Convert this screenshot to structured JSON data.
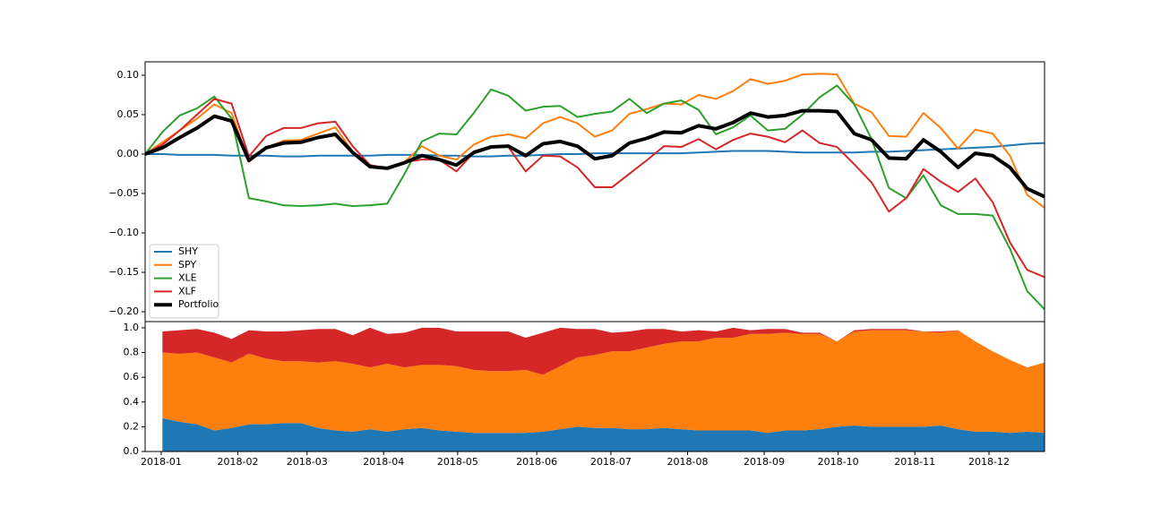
{
  "chart_data": [
    {
      "type": "line",
      "x": [
        0,
        1,
        2,
        3,
        4,
        5,
        6,
        7,
        8,
        9,
        10,
        11,
        12,
        13,
        14,
        15,
        16,
        17,
        18,
        19,
        20,
        21,
        22,
        23,
        24,
        25,
        26,
        27,
        28,
        29,
        30,
        31,
        32,
        33,
        34,
        35,
        36,
        37,
        38,
        39,
        40,
        41,
        42,
        43,
        44,
        45,
        46,
        47,
        48,
        49,
        50,
        51,
        52
      ],
      "xlim": [
        0,
        52
      ],
      "ylim": [
        -0.2125,
        0.117
      ],
      "yticks": [
        {
          "value": -0.2,
          "label": "−0.20"
        },
        {
          "value": -0.15,
          "label": "−0.15"
        },
        {
          "value": -0.1,
          "label": "−0.10"
        },
        {
          "value": -0.05,
          "label": "−0.05"
        },
        {
          "value": 0,
          "label": "0.00"
        },
        {
          "value": 0.05,
          "label": "0.05"
        },
        {
          "value": 0.1,
          "label": "0.10"
        }
      ],
      "legend": "lower left",
      "series": [
        {
          "name": "SHY",
          "color": "#1f77b4",
          "linewidth": 2,
          "values": [
            0,
            0,
            -0.001,
            -0.001,
            -0.001,
            -0.002,
            -0.002,
            -0.002,
            -0.003,
            -0.003,
            -0.002,
            -0.002,
            -0.002,
            -0.002,
            -0.001,
            -0.001,
            -0.001,
            -0.002,
            -0.002,
            -0.003,
            -0.003,
            -0.002,
            -0.002,
            -0.001,
            0,
            0,
            0.001,
            0.001,
            0.001,
            0.001,
            0.001,
            0.001,
            0.002,
            0.003,
            0.004,
            0.004,
            0.004,
            0.003,
            0.002,
            0.002,
            0.002,
            0.002,
            0.003,
            0.003,
            0.004,
            0.005,
            0.006,
            0.007,
            0.008,
            0.009,
            0.011,
            0.013,
            0.014
          ]
        },
        {
          "name": "SPY",
          "color": "#ff7f0e",
          "linewidth": 2,
          "values": [
            0,
            0.015,
            0.03,
            0.045,
            0.063,
            0.052,
            -0.01,
            0.008,
            0.017,
            0.018,
            0.026,
            0.034,
            0.003,
            -0.016,
            -0.017,
            -0.01,
            0.01,
            -0.002,
            -0.007,
            0.012,
            0.022,
            0.025,
            0.02,
            0.039,
            0.047,
            0.039,
            0.022,
            0.03,
            0.051,
            0.057,
            0.064,
            0.063,
            0.075,
            0.07,
            0.08,
            0.095,
            0.089,
            0.093,
            0.101,
            0.102,
            0.101,
            0.064,
            0.053,
            0.023,
            0.022,
            0.052,
            0.033,
            0.007,
            0.031,
            0.026,
            -0.002,
            -0.052,
            -0.068
          ]
        },
        {
          "name": "XLE",
          "color": "#2ca02c",
          "linewidth": 2,
          "values": [
            0,
            0.028,
            0.049,
            0.058,
            0.073,
            0.045,
            -0.056,
            -0.06,
            -0.065,
            -0.066,
            -0.065,
            -0.063,
            -0.066,
            -0.065,
            -0.063,
            -0.025,
            0.016,
            0.026,
            0.025,
            0.052,
            0.082,
            0.074,
            0.055,
            0.06,
            0.061,
            0.047,
            0.051,
            0.054,
            0.07,
            0.052,
            0.064,
            0.068,
            0.056,
            0.025,
            0.034,
            0.049,
            0.03,
            0.032,
            0.05,
            0.072,
            0.087,
            0.063,
            0.019,
            -0.043,
            -0.056,
            -0.027,
            -0.065,
            -0.076,
            -0.076,
            -0.078,
            -0.12,
            -0.174,
            -0.197
          ]
        },
        {
          "name": "XLF",
          "color": "#d62728",
          "linewidth": 2,
          "values": [
            0,
            0.012,
            0.03,
            0.05,
            0.07,
            0.064,
            -0.003,
            0.023,
            0.033,
            0.033,
            0.039,
            0.041,
            0.01,
            -0.014,
            -0.018,
            -0.01,
            -0.007,
            -0.007,
            -0.022,
            0.002,
            0.009,
            0.009,
            -0.022,
            -0.002,
            -0.003,
            -0.017,
            -0.042,
            -0.042,
            -0.025,
            -0.008,
            0.01,
            0.009,
            0.019,
            0.006,
            0.018,
            0.026,
            0.022,
            0.015,
            0.03,
            0.014,
            0.009,
            -0.013,
            -0.036,
            -0.073,
            -0.056,
            -0.019,
            -0.035,
            -0.048,
            -0.031,
            -0.061,
            -0.112,
            -0.147,
            -0.156
          ]
        },
        {
          "name": "Portfolio",
          "color": "#000000",
          "linewidth": 4,
          "values": [
            0,
            0.008,
            0.021,
            0.033,
            0.048,
            0.042,
            -0.008,
            0.008,
            0.014,
            0.015,
            0.021,
            0.025,
            0.002,
            -0.016,
            -0.018,
            -0.011,
            -0.002,
            -0.007,
            -0.014,
            0.002,
            0.009,
            0.01,
            -0.002,
            0.013,
            0.016,
            0.01,
            -0.006,
            -0.002,
            0.014,
            0.02,
            0.028,
            0.027,
            0.036,
            0.032,
            0.04,
            0.052,
            0.047,
            0.049,
            0.055,
            0.055,
            0.054,
            0.026,
            0.018,
            -0.005,
            -0.006,
            0.018,
            0.003,
            -0.017,
            0.001,
            -0.002,
            -0.017,
            -0.044,
            -0.054
          ]
        }
      ]
    },
    {
      "type": "stacked-area",
      "x": [
        0,
        1,
        2,
        3,
        4,
        5,
        6,
        7,
        8,
        9,
        10,
        11,
        12,
        13,
        14,
        15,
        16,
        17,
        18,
        19,
        20,
        21,
        22,
        23,
        24,
        25,
        26,
        27,
        28,
        29,
        30,
        31,
        32,
        33,
        34,
        35,
        36,
        37,
        38,
        39,
        40,
        41,
        42,
        43,
        44,
        45,
        46,
        47,
        48,
        49,
        50,
        51,
        52
      ],
      "xlim": [
        0,
        52
      ],
      "xticks": [
        {
          "value": 0.93,
          "label": "2018-01"
        },
        {
          "value": 5.36,
          "label": "2018-02"
        },
        {
          "value": 9.36,
          "label": "2018-03"
        },
        {
          "value": 13.79,
          "label": "2018-04"
        },
        {
          "value": 18.07,
          "label": "2018-05"
        },
        {
          "value": 22.64,
          "label": "2018-06"
        },
        {
          "value": 26.93,
          "label": "2018-07"
        },
        {
          "value": 31.36,
          "label": "2018-08"
        },
        {
          "value": 35.79,
          "label": "2018-09"
        },
        {
          "value": 40.07,
          "label": "2018-10"
        },
        {
          "value": 44.5,
          "label": "2018-11"
        },
        {
          "value": 48.79,
          "label": "2018-12"
        }
      ],
      "ylim": [
        0,
        1.05
      ],
      "yticks": [
        {
          "value": 0,
          "label": "0.0"
        },
        {
          "value": 0.2,
          "label": "0.2"
        },
        {
          "value": 0.4,
          "label": "0.4"
        },
        {
          "value": 0.6,
          "label": "0.6"
        },
        {
          "value": 0.8,
          "label": "0.8"
        },
        {
          "value": 1,
          "label": "1.0"
        }
      ],
      "series": [
        {
          "color": "#1f77b4",
          "values": [
            null,
            0.27,
            0.24,
            0.22,
            0.17,
            0.19,
            0.22,
            0.22,
            0.23,
            0.23,
            0.19,
            0.17,
            0.16,
            0.18,
            0.16,
            0.18,
            0.19,
            0.17,
            0.16,
            0.15,
            0.15,
            0.15,
            0.15,
            0.16,
            0.18,
            0.2,
            0.19,
            0.19,
            0.18,
            0.18,
            0.19,
            0.18,
            0.17,
            0.17,
            0.17,
            0.17,
            0.15,
            0.17,
            0.17,
            0.18,
            0.2,
            0.21,
            0.2,
            0.2,
            0.2,
            0.2,
            0.21,
            0.18,
            0.16,
            0.16,
            0.15,
            0.16,
            0.15
          ]
        },
        {
          "color": "#ff7f0e",
          "values": [
            null,
            0.53,
            0.55,
            0.58,
            0.59,
            0.53,
            0.57,
            0.53,
            0.5,
            0.5,
            0.53,
            0.56,
            0.55,
            0.5,
            0.55,
            0.5,
            0.51,
            0.53,
            0.53,
            0.51,
            0.5,
            0.5,
            0.51,
            0.46,
            0.51,
            0.56,
            0.59,
            0.62,
            0.63,
            0.66,
            0.68,
            0.71,
            0.72,
            0.75,
            0.75,
            0.78,
            0.8,
            0.79,
            0.78,
            0.77,
            0.69,
            0.76,
            0.78,
            0.78,
            0.78,
            0.77,
            0.75,
            0.8,
            0.73,
            0.65,
            0.59,
            0.52,
            0.57
          ]
        },
        {
          "color": "#d62728",
          "values": [
            null,
            0.17,
            0.19,
            0.19,
            0.2,
            0.19,
            0.19,
            0.22,
            0.24,
            0.25,
            0.27,
            0.26,
            0.23,
            0.32,
            0.24,
            0.28,
            0.3,
            0.3,
            0.28,
            0.31,
            0.32,
            0.32,
            0.26,
            0.34,
            0.31,
            0.23,
            0.21,
            0.15,
            0.16,
            0.15,
            0.12,
            0.08,
            0.09,
            0.05,
            0.08,
            0.03,
            0.04,
            0.03,
            0.01,
            0.01,
            0,
            0.01,
            0.01,
            0.01,
            0.01,
            0,
            0.01,
            0,
            0,
            0,
            0,
            0,
            0
          ]
        }
      ]
    }
  ]
}
